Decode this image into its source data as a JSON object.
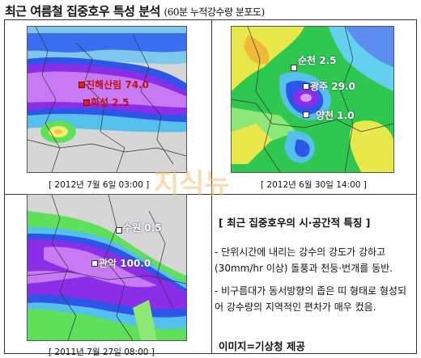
{
  "title": {
    "main": "최근 여름철 집중호우 특성 분석",
    "sub": "(60분 누적강수량 분포도)"
  },
  "maps": [
    {
      "caption": "[ 2012년 7월 6일 03:00 ]",
      "labels": [
        {
          "text": "진해산림 74.0",
          "color": "#c01010"
        },
        {
          "text": "화성 2.5",
          "color": "#c01010"
        }
      ]
    },
    {
      "caption": "[ 2012년 6월 30일 14:00 ]",
      "labels": [
        {
          "text": "순천 2.5",
          "color": "#ffffff"
        },
        {
          "text": "광주 29.0",
          "color": "#ffffff"
        },
        {
          "text": "양천 1.0",
          "color": "#ffffff"
        }
      ]
    },
    {
      "caption": "[ 2011년 7월 27일 08:00 ]",
      "labels": [
        {
          "text": "수원 0.5",
          "color": "#ffffff"
        },
        {
          "text": "관악 100.0",
          "color": "#ffffff"
        }
      ]
    }
  ],
  "features": {
    "heading": "[ 최근 집중호우의 시·공간적 특징 ]",
    "bullets": [
      "- 단위시간에 내리는 강수의 강도가 강하고 (30mm/hr 이상) 돌풍과 천둥·번개를 동반.",
      "- 비구름대가 동서방향의 좁은 띠 형태로 형성되어 강수량의 지역적인 편차가 매우 컸음."
    ]
  },
  "credit": "이미지=기상청 제공",
  "watermark": "지식뉴"
}
